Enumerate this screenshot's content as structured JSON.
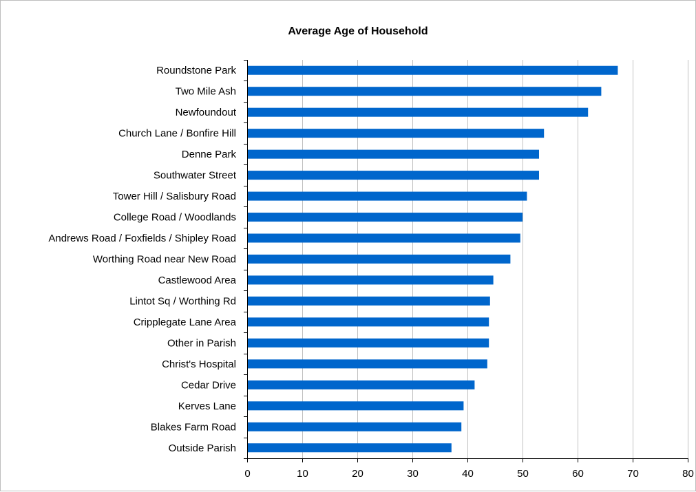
{
  "chart_data": {
    "type": "bar",
    "orientation": "horizontal",
    "title": "Average Age of Household",
    "xlabel": "",
    "ylabel": "",
    "categories": [
      "Roundstone Park",
      "Two Mile Ash",
      "Newfoundout",
      "Church Lane / Bonfire Hill",
      "Denne Park",
      "Southwater Street",
      "Tower Hill / Salisbury Road",
      "College Road / Woodlands",
      "Andrews Road / Foxfields / Shipley Road",
      "Worthing Road near New Road",
      "Castlewood Area",
      "Lintot Sq / Worthing Rd",
      "Cripplegate Lane Area",
      "Other in Parish",
      "Christ's Hospital",
      "Cedar Drive",
      "Kerves Lane",
      "Blakes Farm Road",
      "Outside Parish"
    ],
    "values": [
      67.3,
      64.3,
      61.9,
      53.9,
      53.0,
      53.0,
      50.8,
      50.0,
      49.6,
      47.8,
      44.7,
      44.1,
      43.9,
      43.9,
      43.6,
      41.3,
      39.3,
      38.9,
      37.1
    ],
    "xlim": [
      0,
      80
    ],
    "xticks": [
      0,
      10,
      20,
      30,
      40,
      50,
      60,
      70,
      80
    ],
    "grid": true,
    "bar_color": "#0066CC",
    "grid_color": "#c0c0c0"
  }
}
